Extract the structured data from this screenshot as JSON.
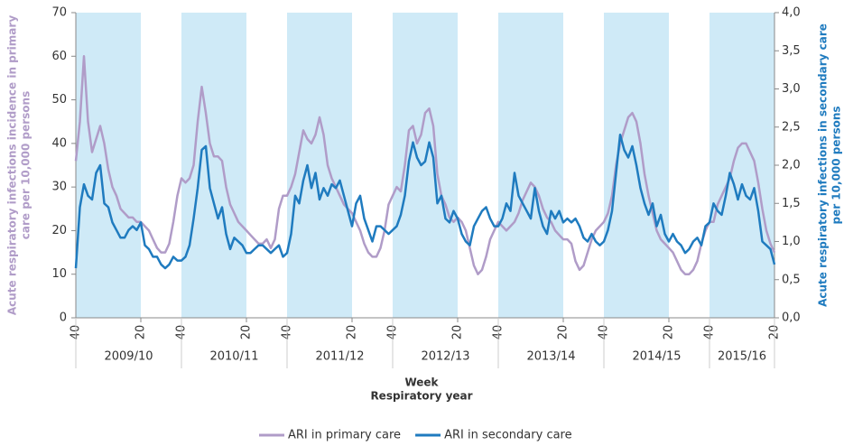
{
  "chart_data": {
    "type": "line",
    "ylabel": [
      "Acute respiratory infections incidence in primary",
      "care per 10,000 persons"
    ],
    "y2label": [
      "Acute respiratory infections in secondary care",
      "per 10,000 persons"
    ],
    "xlabel": [
      "Week",
      "Respiratory year"
    ],
    "seasons": [
      "2009/10",
      "2010/11",
      "2011/12",
      "2012/13",
      "2013/14",
      "2014/15",
      "2015/16"
    ],
    "shade_color": "#cfeaf7",
    "categories": [
      "40",
      null,
      null,
      null,
      null,
      null,
      null,
      null,
      null,
      null,
      null,
      null,
      null,
      null,
      null,
      null,
      "20",
      null,
      null,
      null,
      null,
      null,
      null,
      null,
      null,
      null,
      "40",
      null,
      null,
      null,
      null,
      null,
      null,
      null,
      null,
      null,
      null,
      null,
      null,
      null,
      null,
      null,
      "20",
      null,
      null,
      null,
      null,
      null,
      null,
      null,
      null,
      null,
      "40",
      null,
      null,
      null,
      null,
      null,
      null,
      null,
      null,
      null,
      null,
      null,
      null,
      null,
      null,
      null,
      "20",
      null,
      null,
      null,
      null,
      null,
      null,
      null,
      null,
      null,
      "40",
      null,
      null,
      null,
      null,
      null,
      null,
      null,
      null,
      null,
      null,
      null,
      null,
      null,
      null,
      null,
      "20",
      null,
      null,
      null,
      null,
      null,
      null,
      null,
      null,
      null,
      "40",
      null,
      null,
      null,
      null,
      null,
      null,
      null,
      null,
      null,
      null,
      null,
      null,
      null,
      null,
      null,
      "20",
      null,
      null,
      null,
      null,
      null,
      null,
      null,
      null,
      null,
      "40",
      null,
      null,
      null,
      null,
      null,
      null,
      null,
      null,
      null,
      null,
      null,
      null,
      null,
      null,
      null,
      "20",
      null,
      null,
      null,
      null,
      null,
      null,
      null,
      null,
      null,
      "40",
      null,
      null,
      null,
      null,
      null,
      null,
      null,
      null,
      null,
      null,
      null,
      null,
      null,
      null,
      null,
      "20"
    ],
    "series": [
      {
        "name": "ARI in primary care",
        "color": "#b09cc8",
        "axis": "y",
        "values": [
          36,
          45,
          60,
          45,
          38,
          41,
          44,
          40,
          34,
          30,
          28,
          25,
          24,
          23,
          23,
          22,
          22,
          21,
          20,
          18,
          16,
          15,
          15,
          17,
          22,
          28,
          32,
          31,
          32,
          35,
          45,
          53,
          47,
          40,
          37,
          37,
          36,
          30,
          26,
          24,
          22,
          21,
          20,
          19,
          18,
          17,
          17,
          18,
          16,
          18,
          25,
          28,
          28,
          30,
          33,
          38,
          43,
          41,
          40,
          42,
          46,
          42,
          35,
          32,
          30,
          28,
          26,
          25,
          24,
          22,
          20,
          17,
          15,
          14,
          14,
          16,
          20,
          26,
          28,
          30,
          29,
          35,
          43,
          44,
          40,
          42,
          47,
          48,
          44,
          33,
          28,
          26,
          23,
          22,
          23,
          22,
          20,
          16,
          12,
          10,
          11,
          14,
          18,
          20,
          22,
          21,
          20,
          21,
          22,
          24,
          27,
          29,
          31,
          30,
          28,
          25,
          23,
          22,
          20,
          19,
          18,
          18,
          17,
          13,
          11,
          12,
          15,
          18,
          20,
          21,
          22,
          24,
          28,
          35,
          40,
          43,
          46,
          47,
          45,
          40,
          33,
          28,
          24,
          20,
          18,
          17,
          16,
          15,
          13,
          11,
          10,
          10,
          11,
          13,
          17,
          20,
          22,
          22,
          26,
          28,
          30,
          32,
          36,
          39,
          40,
          40,
          38,
          36,
          31,
          25,
          20,
          17,
          15
        ]
      },
      {
        "name": "ARI in secondary care",
        "color": "#1f7bbf",
        "axis": "y2",
        "values": [
          0.65,
          1.45,
          1.75,
          1.6,
          1.55,
          1.9,
          2.0,
          1.5,
          1.45,
          1.25,
          1.15,
          1.05,
          1.05,
          1.15,
          1.2,
          1.15,
          1.25,
          0.95,
          0.9,
          0.8,
          0.8,
          0.7,
          0.65,
          0.7,
          0.8,
          0.75,
          0.75,
          0.8,
          0.95,
          1.3,
          1.7,
          2.2,
          2.25,
          1.7,
          1.5,
          1.3,
          1.45,
          1.1,
          0.9,
          1.05,
          1.0,
          0.95,
          0.85,
          0.85,
          0.9,
          0.95,
          0.95,
          0.9,
          0.85,
          0.9,
          0.95,
          0.8,
          0.85,
          1.1,
          1.6,
          1.5,
          1.8,
          2.0,
          1.7,
          1.9,
          1.55,
          1.7,
          1.6,
          1.75,
          1.7,
          1.8,
          1.6,
          1.4,
          1.2,
          1.5,
          1.6,
          1.3,
          1.15,
          1.0,
          1.2,
          1.2,
          1.15,
          1.1,
          1.15,
          1.2,
          1.35,
          1.6,
          2.05,
          2.3,
          2.1,
          2.0,
          2.05,
          2.3,
          2.1,
          1.5,
          1.6,
          1.3,
          1.25,
          1.4,
          1.3,
          1.1,
          1.0,
          0.95,
          1.2,
          1.3,
          1.4,
          1.45,
          1.3,
          1.2,
          1.2,
          1.3,
          1.5,
          1.4,
          1.9,
          1.6,
          1.5,
          1.4,
          1.3,
          1.7,
          1.4,
          1.2,
          1.1,
          1.4,
          1.3,
          1.4,
          1.25,
          1.3,
          1.25,
          1.3,
          1.2,
          1.05,
          1.0,
          1.1,
          1.0,
          0.95,
          1.0,
          1.15,
          1.4,
          1.9,
          2.4,
          2.2,
          2.1,
          2.25,
          2.0,
          1.7,
          1.5,
          1.35,
          1.5,
          1.2,
          1.35,
          1.1,
          1.0,
          1.1,
          1.0,
          0.95,
          0.85,
          0.9,
          1.0,
          1.05,
          0.95,
          1.2,
          1.25,
          1.5,
          1.4,
          1.35,
          1.6,
          1.9,
          1.75,
          1.55,
          1.75,
          1.6,
          1.55,
          1.7,
          1.4,
          1.0,
          0.95,
          0.9,
          0.7
        ]
      }
    ],
    "ylim": [
      0,
      70
    ],
    "yticks": [
      0,
      10,
      20,
      30,
      40,
      50,
      60,
      70
    ],
    "y2lim": [
      0,
      4
    ],
    "y2ticks": [
      {
        "value": 0,
        "label": "0,0"
      },
      {
        "value": 0.5,
        "label": "0,5"
      },
      {
        "value": 1,
        "label": "1,0"
      },
      {
        "value": 1.5,
        "label": "1,5"
      },
      {
        "value": 2,
        "label": "2,0"
      },
      {
        "value": 2.5,
        "label": "2,5"
      },
      {
        "value": 3,
        "label": "3,0"
      },
      {
        "value": 3.5,
        "label": "3,5"
      },
      {
        "value": 4,
        "label": "4,0"
      }
    ],
    "legend": "bottom"
  }
}
